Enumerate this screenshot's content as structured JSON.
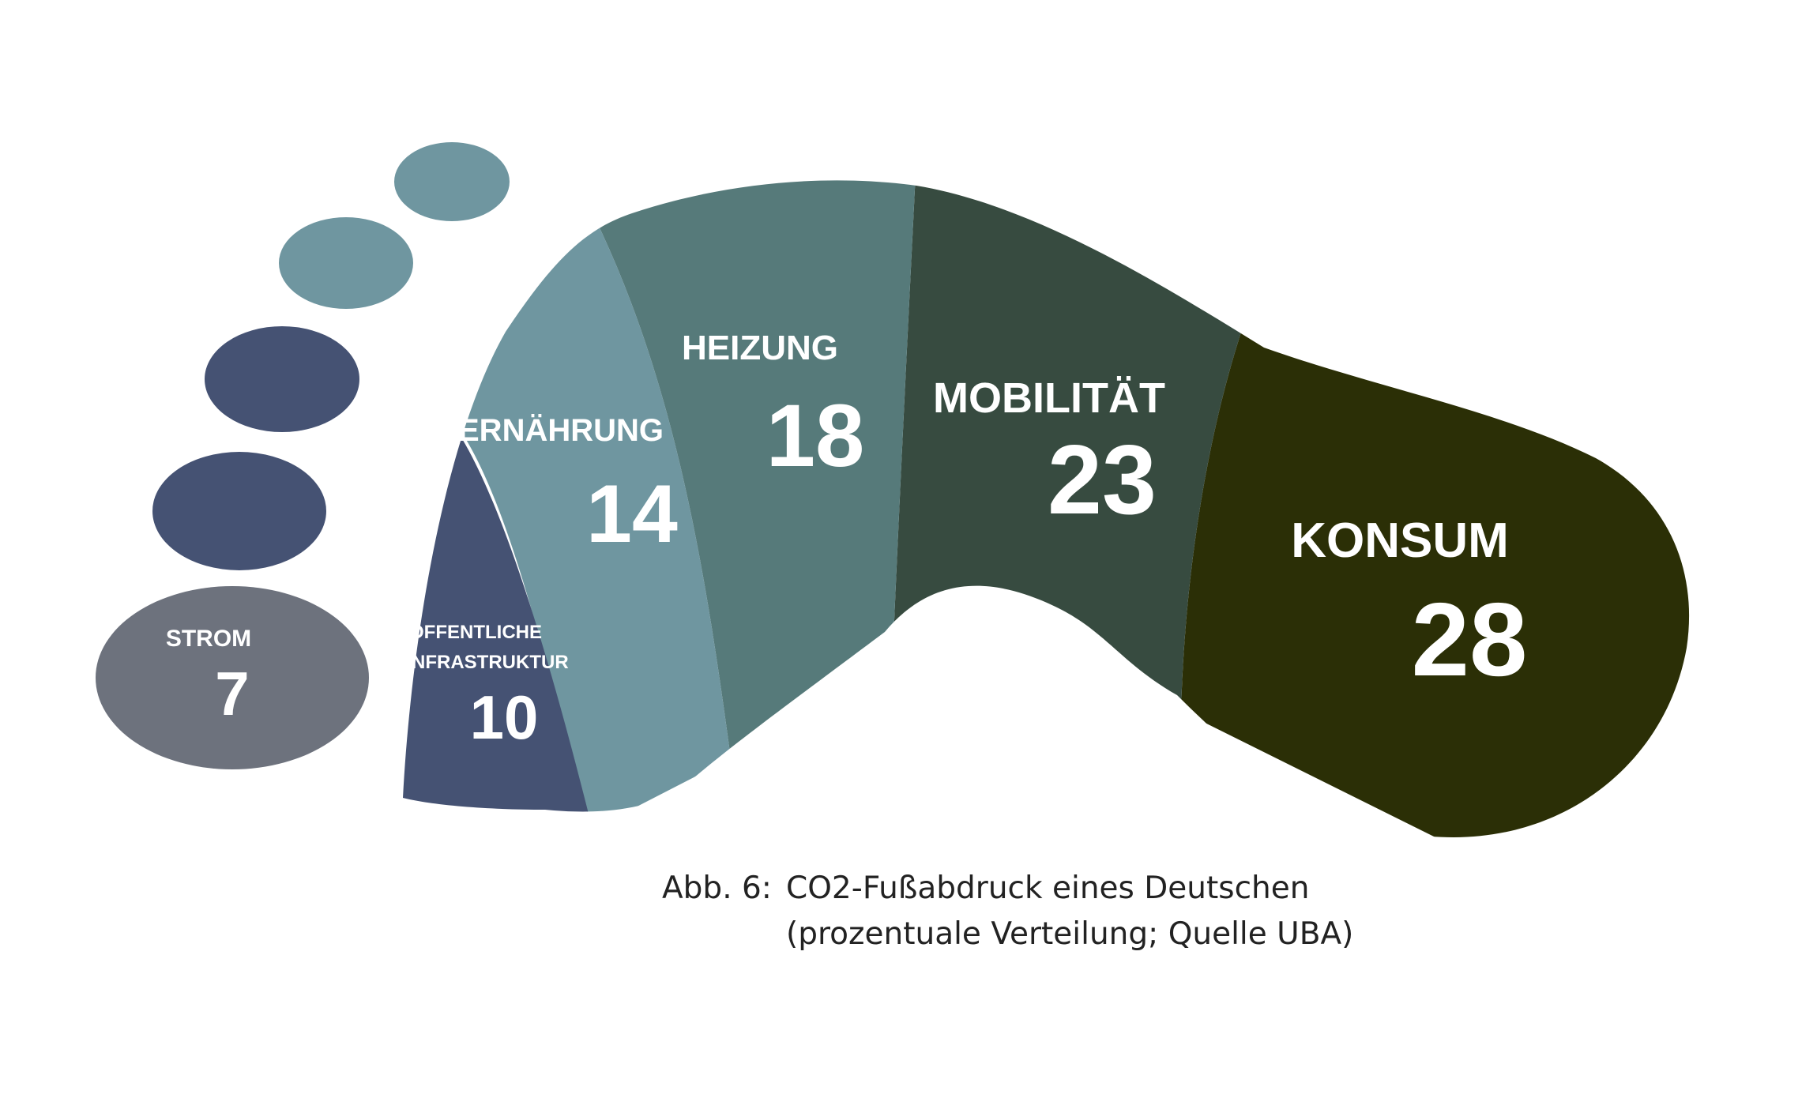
{
  "colors": {
    "strom": "#6d727d",
    "infrastruktur": "#455273",
    "ernaehrung": "#6f96a0",
    "heizung": "#567a7a",
    "mobilitaet": "#374b40",
    "konsum": "#2b2f06",
    "toe_light": "#6f96a0",
    "toe_dark": "#455273"
  },
  "segments": {
    "strom": {
      "label": "STROM",
      "value": "7"
    },
    "infrastruktur": {
      "label_line1": "ÖFFENTLICHE",
      "label_line2": "INFRASTRUKTUR",
      "value": "10"
    },
    "ernaehrung": {
      "label": "ERNÄHRUNG",
      "value": "14"
    },
    "heizung": {
      "label": "HEIZUNG",
      "value": "18"
    },
    "mobilitaet": {
      "label": "MOBILITÄT",
      "value": "23"
    },
    "konsum": {
      "label": "KONSUM",
      "value": "28"
    }
  },
  "caption": {
    "prefix": "Abb. 6:",
    "line1": "CO2-Fußabdruck eines Deutschen",
    "line2": "(prozentuale Verteilung; Quelle UBA)"
  }
}
